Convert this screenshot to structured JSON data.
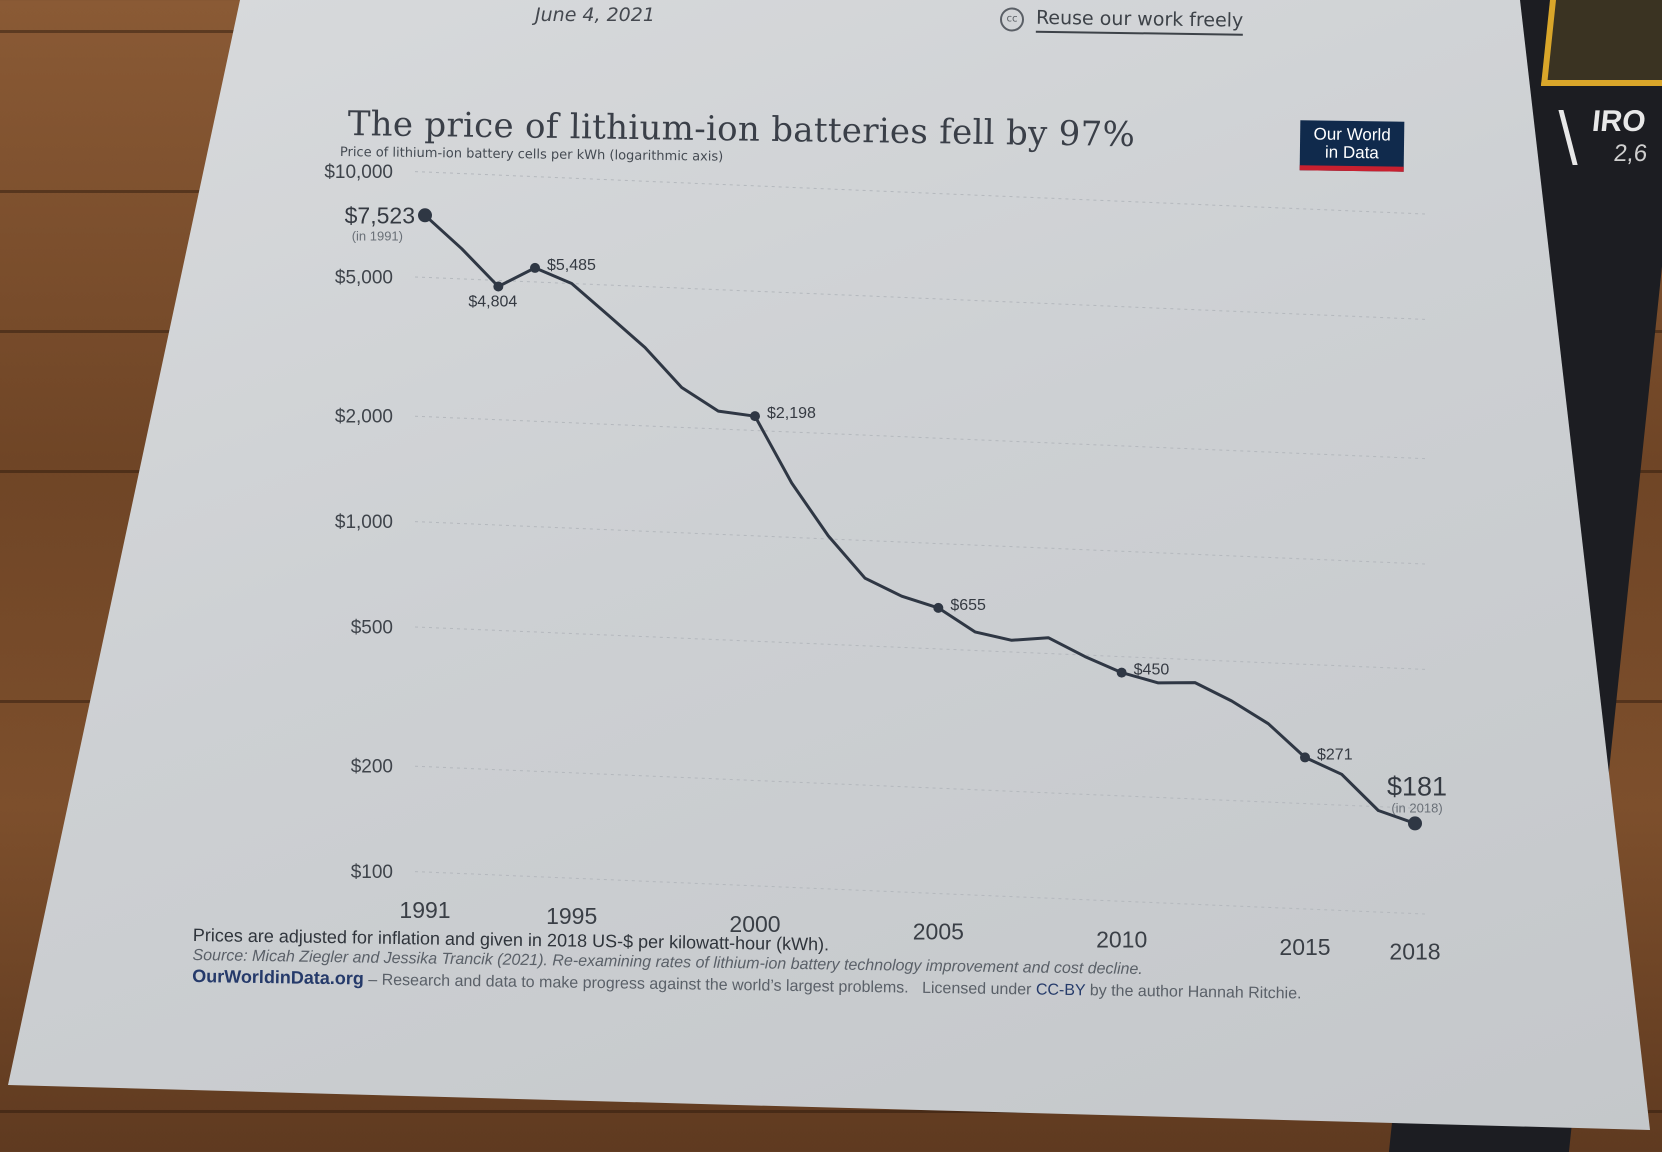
{
  "header": {
    "date": "June 4, 2021",
    "reuse_link": "Reuse our work freely",
    "cc_icon": "cc-icon"
  },
  "logo": {
    "line1": "Our World",
    "line2": "in Data",
    "bg_color": "#102a4c",
    "accent_color": "#c8202f"
  },
  "side_card": {
    "title": "IRO",
    "sub": "2,6"
  },
  "footer": {
    "note": "Prices are adjusted for inflation and given in 2018 US-$ per kilowatt-hour (kWh).",
    "source": "Source: Micah Ziegler and Jessika Trancik (2021). Re-examining rates of lithium-ion battery technology improvement and cost decline.",
    "site": "OurWorldinData.org",
    "tagline": " – Research and data to make progress against the world’s largest problems.",
    "license_prefix": "Licensed under ",
    "license": "CC-BY",
    "license_suffix": " by the author Hannah Ritchie."
  },
  "chart_data": {
    "type": "line",
    "title": "The price of lithium-ion batteries fell by 97%",
    "subtitle": "Price of lithium-ion battery cells per kWh (logarithmic axis)",
    "yscale": "log",
    "ylim": [
      100,
      10000
    ],
    "xlim": [
      1991,
      2018
    ],
    "y_ticks": [
      {
        "value": 10000,
        "label": "$10,000"
      },
      {
        "value": 5000,
        "label": "$5,000"
      },
      {
        "value": 2000,
        "label": "$2,000"
      },
      {
        "value": 1000,
        "label": "$1,000"
      },
      {
        "value": 500,
        "label": "$500"
      },
      {
        "value": 200,
        "label": "$200"
      },
      {
        "value": 100,
        "label": "$100"
      }
    ],
    "x_ticks": [
      1991,
      1995,
      2000,
      2005,
      2010,
      2015,
      2018
    ],
    "line_color": "#2f3744",
    "series": [
      {
        "name": "Price per kWh",
        "x": [
          1991,
          1992,
          1993,
          1994,
          1995,
          1996,
          1997,
          1998,
          1999,
          2000,
          2001,
          2002,
          2003,
          2004,
          2005,
          2006,
          2007,
          2008,
          2009,
          2010,
          2011,
          2012,
          2013,
          2014,
          2015,
          2016,
          2017,
          2018
        ],
        "values": [
          7523,
          6100,
          4804,
          5485,
          5000,
          4100,
          3350,
          2600,
          2250,
          2198,
          1430,
          1020,
          780,
          700,
          655,
          565,
          540,
          555,
          495,
          450,
          425,
          430,
          385,
          335,
          271,
          245,
          195,
          181
        ]
      }
    ],
    "annotations": [
      {
        "x": 1991,
        "value": 7523,
        "label": "$7,523",
        "sub": "(in 1991)"
      },
      {
        "x": 1993,
        "value": 4804,
        "label": "$4,804"
      },
      {
        "x": 1994,
        "value": 5485,
        "label": "$5,485"
      },
      {
        "x": 2000,
        "value": 2198,
        "label": "$2,198"
      },
      {
        "x": 2005,
        "value": 655,
        "label": "$655"
      },
      {
        "x": 2010,
        "value": 450,
        "label": "$450"
      },
      {
        "x": 2015,
        "value": 271,
        "label": "$271"
      },
      {
        "x": 2018,
        "value": 181,
        "label": "$181",
        "sub": "(in 2018)"
      }
    ]
  }
}
